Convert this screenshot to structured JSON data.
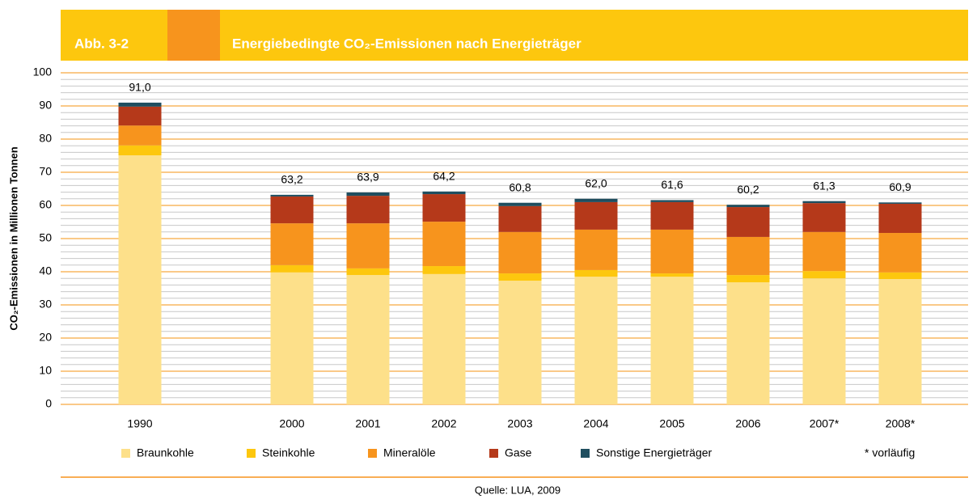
{
  "header": {
    "figure_no": "Abb. 3-2"
  },
  "chart_data": {
    "type": "stacked-bar",
    "title": "Energiebedingte CO₂-Emissionen nach Energieträger",
    "y_label": "CO₂-Emissionen  in Millionen Tonnen",
    "categories": [
      "1990",
      null,
      "2000",
      "2001",
      "2002",
      "2003",
      "2004",
      "2005",
      "2006",
      "2007*",
      "2008*"
    ],
    "series": [
      {
        "name": "Braunkohle",
        "color": "#fde08a",
        "values": [
          75.1,
          null,
          39.8,
          39.0,
          39.3,
          37.3,
          38.5,
          38.5,
          36.8,
          38.0,
          37.8
        ]
      },
      {
        "name": "Steinkohle",
        "color": "#fdc70e",
        "values": [
          3.0,
          null,
          2.2,
          2.0,
          2.4,
          2.2,
          2.0,
          1.0,
          2.2,
          2.2,
          2.0
        ]
      },
      {
        "name": "Mineralöle",
        "color": "#f7941d",
        "values": [
          6.0,
          null,
          12.6,
          13.6,
          13.4,
          12.5,
          12.2,
          13.2,
          11.5,
          11.8,
          11.9
        ]
      },
      {
        "name": "Gase",
        "color": "#b5391a",
        "values": [
          5.7,
          null,
          8.1,
          8.3,
          8.3,
          7.8,
          8.3,
          8.3,
          9.0,
          8.7,
          8.8
        ]
      },
      {
        "name": "Sonstige Energieträger",
        "color": "#1f4e5f",
        "values": [
          1.2,
          null,
          0.5,
          1.0,
          0.8,
          1.0,
          1.0,
          0.6,
          0.7,
          0.6,
          0.4
        ]
      }
    ],
    "totals": [
      91.0,
      null,
      63.2,
      63.9,
      64.2,
      60.8,
      62.0,
      61.6,
      60.2,
      61.3,
      60.9
    ],
    "total_labels": [
      "91,0",
      null,
      "63,2",
      "63,9",
      "64,2",
      "60,8",
      "62,0",
      "61,6",
      "60,2",
      "61,3",
      "60,9"
    ],
    "ylim": [
      0,
      100
    ],
    "yticks": [
      0,
      10,
      20,
      30,
      40,
      50,
      60,
      70,
      80,
      90,
      100
    ],
    "yticks_minor": [
      2,
      4,
      6,
      8,
      12,
      14,
      16,
      18,
      22,
      24,
      26,
      28,
      32,
      34,
      36,
      38,
      42,
      44,
      46,
      48,
      52,
      54,
      56,
      58,
      62,
      64,
      66,
      68,
      72,
      74,
      76,
      78,
      82,
      84,
      86,
      88,
      92,
      94,
      96,
      98
    ],
    "grid": true,
    "note": "* vorläufig",
    "source": "Quelle: LUA, 2009"
  }
}
